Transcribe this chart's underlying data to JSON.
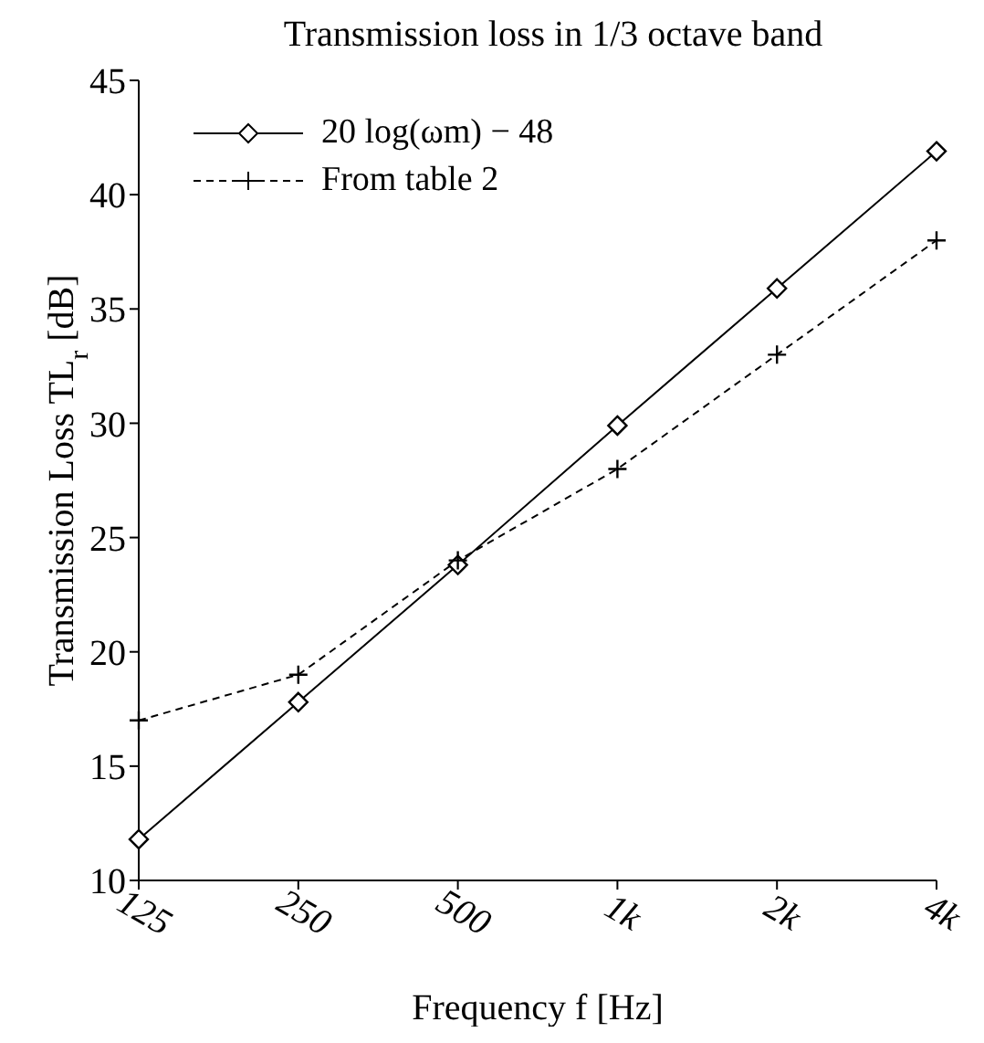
{
  "chart_data": {
    "type": "line",
    "title": "Transmission loss in 1/3 octave band",
    "xlabel": "Frequency f [Hz]",
    "ylabel": "Transmission Loss TL$_{r}$ [dB]",
    "categories": [
      "125",
      "250",
      "500",
      "1k",
      "2k",
      "4k"
    ],
    "series": [
      {
        "name": "20 log(ωm) − 48",
        "color": "#000000",
        "values": [
          11.8,
          17.8,
          23.8,
          29.9,
          35.9,
          41.9
        ],
        "marker": "diamond",
        "line_style": "solid"
      },
      {
        "name": "From table 2",
        "color": "#000000",
        "values": [
          17,
          19,
          24,
          28,
          33,
          38
        ],
        "marker": "cross",
        "line_style": "dashed"
      }
    ],
    "ylim": [
      10,
      45
    ],
    "yticks": [
      10,
      15,
      20,
      25,
      30,
      35,
      40,
      45
    ],
    "grid": false,
    "legend": "top left"
  }
}
